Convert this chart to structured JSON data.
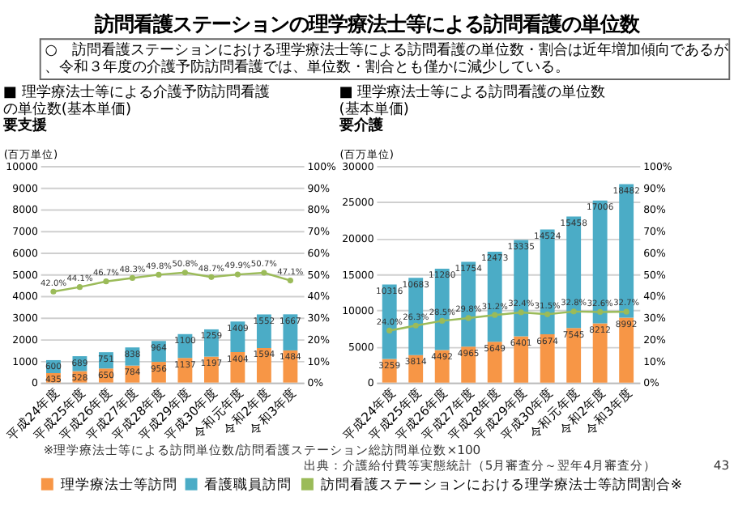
{
  "chart_data": [
    {
      "type": "bar",
      "title": "■ 理学療法士等による介護予防訪問看護の単位数(基本単価)",
      "subtitle": "要支援",
      "ylabel": "(百万単位)",
      "categories": [
        "平成24年度",
        "平成25年度",
        "平成26年度",
        "平成27年度",
        "平成28年度",
        "平成29年度",
        "平成30年度",
        "令和元年度",
        "令和2年度",
        "令和3年度"
      ],
      "stacked": true,
      "series": [
        {
          "name": "理学療法士等訪問",
          "color": "#f79646",
          "values": [
            435,
            528,
            650,
            784,
            956,
            1137,
            1197,
            1404,
            1594,
            1484
          ]
        },
        {
          "name": "看護職員訪問",
          "color": "#4bacc6",
          "values": [
            600,
            689,
            751,
            838,
            964,
            1100,
            1259,
            1409,
            1552,
            1667
          ]
        },
        {
          "name": "訪問看護ステーションにおける理学療法士等訪問割合※",
          "type": "line",
          "axis": "y2",
          "color": "#9bbb59",
          "values": [
            42.0,
            44.1,
            46.7,
            48.3,
            49.8,
            50.8,
            48.7,
            49.9,
            50.7,
            47.1
          ],
          "value_labels": [
            "42.0%",
            "44.1%",
            "46.7%",
            "48.3%",
            "49.8%",
            "50.8%",
            "48.7%",
            "49.9%",
            "50.7%",
            "47.1%"
          ]
        }
      ],
      "ylim": [
        0,
        10000
      ],
      "yticks": [
        0,
        1000,
        2000,
        3000,
        4000,
        5000,
        6000,
        7000,
        8000,
        9000,
        10000
      ],
      "y2lim": [
        0,
        100
      ],
      "y2ticks": [
        {
          "value": 0,
          "label": "0%"
        },
        {
          "value": 10,
          "label": "10%"
        },
        {
          "value": 20,
          "label": "20%"
        },
        {
          "value": 30,
          "label": "30%"
        },
        {
          "value": 40,
          "label": "40%"
        },
        {
          "value": 50,
          "label": "50%"
        },
        {
          "value": 60,
          "label": "60%"
        },
        {
          "value": 70,
          "label": "70%"
        },
        {
          "value": 80,
          "label": "80%"
        },
        {
          "value": 90,
          "label": "90%"
        },
        {
          "value": 100,
          "label": "100%"
        }
      ],
      "grid": "y",
      "legend": "bottom",
      "marker": "circle",
      "data_labels": true,
      "annotations": [
        "訪問看護ステーションの理学療法士等による訪問看護の単位数",
        "○　訪問看護ステーションにおける理学療法士等による訪問看護の単位数・割合は近年増加傾向であるが、令和３年度の介護予防訪問看護では、単位数・割合とも僅かに減少している。",
        "※理学療法士等による訪問単位数/訪問看護ステーション総訪問単位数×100"
      ]
    },
    {
      "type": "bar",
      "title": "■ 理学療法士等による訪問看護の単位数(基本単価)",
      "subtitle": "要介護",
      "ylabel": "(百万単位)",
      "categories": [
        "平成24年度",
        "平成25年度",
        "平成26年度",
        "平成27年度",
        "平成28年度",
        "平成29年度",
        "平成30年度",
        "令和元年度",
        "令和2年度",
        "令和3年度"
      ],
      "stacked": true,
      "series": [
        {
          "name": "理学療法士等訪問",
          "color": "#f79646",
          "values": [
            3259,
            3814,
            4492,
            4965,
            5649,
            6401,
            6674,
            7545,
            8212,
            8992
          ]
        },
        {
          "name": "看護職員訪問",
          "color": "#4bacc6",
          "values": [
            10316,
            10683,
            11280,
            11754,
            12473,
            13335,
            14524,
            15458,
            17006,
            18482
          ]
        },
        {
          "name": "訪問看護ステーションにおける理学療法士等訪問割合※",
          "type": "line",
          "axis": "y2",
          "color": "#9bbb59",
          "values": [
            24.0,
            26.3,
            28.5,
            29.8,
            31.2,
            32.4,
            31.5,
            32.8,
            32.6,
            32.7
          ],
          "value_labels": [
            "24.0%",
            "26.3%",
            "28.5%",
            "29.8%",
            "31.2%",
            "32.4%",
            "31.5%",
            "32.8%",
            "32.6%",
            "32.7%"
          ]
        }
      ],
      "ylim": [
        0,
        30000
      ],
      "yticks": [
        0,
        5000,
        10000,
        15000,
        20000,
        25000,
        30000
      ],
      "y2lim": [
        0,
        100
      ],
      "y2ticks": [
        {
          "value": 0,
          "label": "0%"
        },
        {
          "value": 10,
          "label": "10%"
        },
        {
          "value": 20,
          "label": "20%"
        },
        {
          "value": 30,
          "label": "30%"
        },
        {
          "value": 40,
          "label": "40%"
        },
        {
          "value": 50,
          "label": "50%"
        },
        {
          "value": 60,
          "label": "60%"
        },
        {
          "value": 70,
          "label": "70%"
        },
        {
          "value": 80,
          "label": "80%"
        },
        {
          "value": 90,
          "label": "90%"
        },
        {
          "value": 100,
          "label": "100%"
        }
      ],
      "grid": "y",
      "legend": "bottom",
      "marker": "circle",
      "data_labels": true,
      "annotations": [
        "出典：介護給付費等実態統計（5月審査分～翌年4月審査分）",
        "43"
      ]
    }
  ]
}
